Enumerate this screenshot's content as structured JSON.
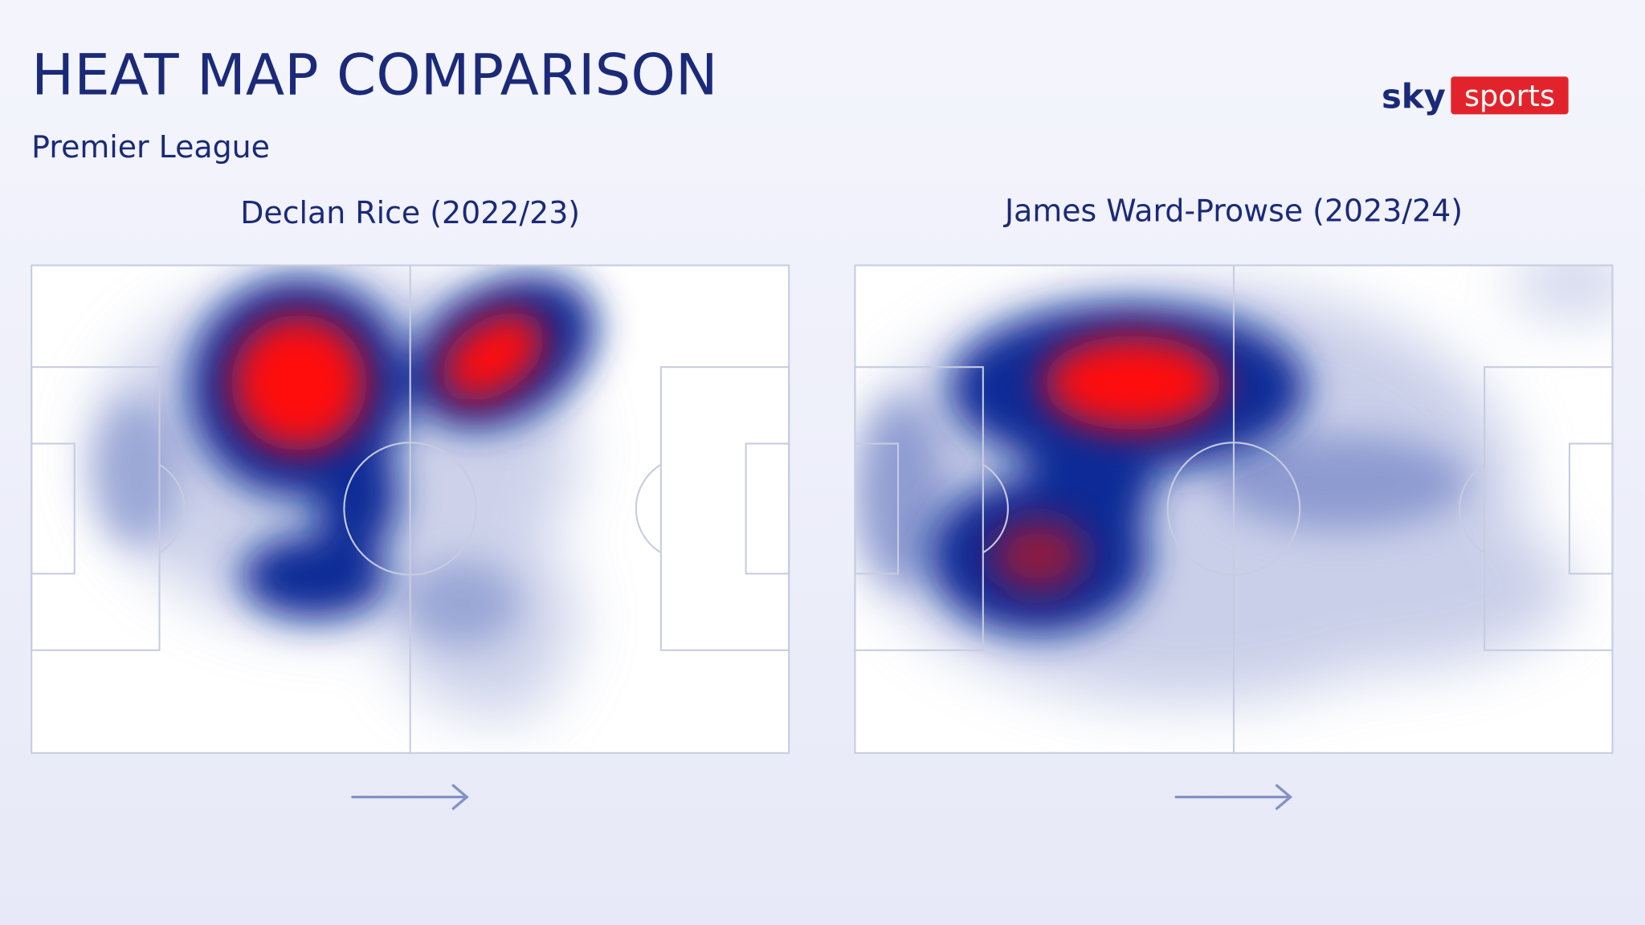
{
  "header": {
    "title": "HEAT MAP COMPARISON",
    "subtitle": "Premier League"
  },
  "logo": {
    "brand": "sky",
    "product": "sports"
  },
  "panels": [
    {
      "player": "Declan Rice (2022/23)"
    },
    {
      "player": "James Ward-Prowse (2023/24)"
    }
  ]
}
